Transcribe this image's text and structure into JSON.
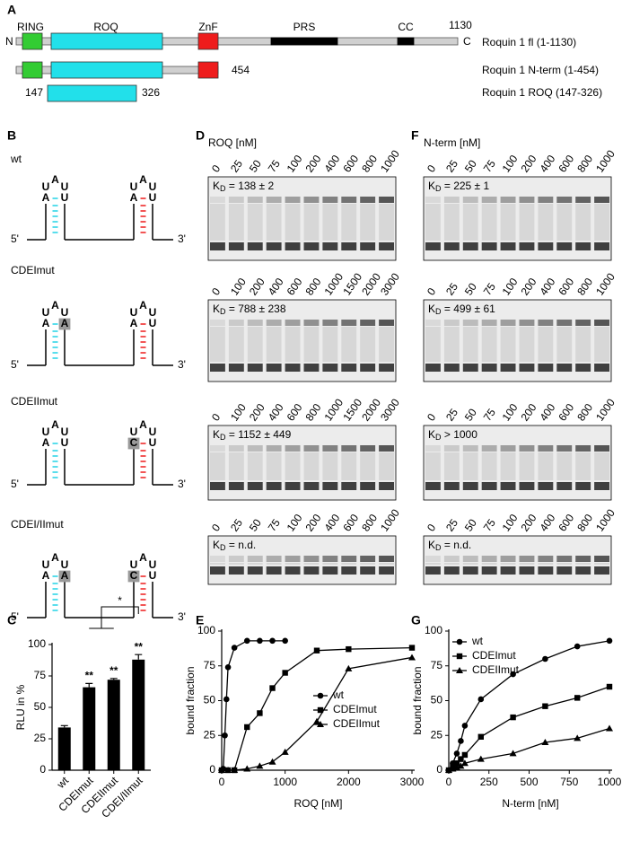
{
  "panel_labels": {
    "a": "A",
    "b": "B",
    "c": "C",
    "d": "D",
    "e": "E",
    "f": "F",
    "g": "G"
  },
  "panel_a": {
    "n_term": "N",
    "c_term": "C",
    "length": "1130",
    "domain_labels": [
      "RING",
      "ROQ",
      "ZnF",
      "PRS",
      "CC"
    ],
    "constructs": [
      "Roquin 1 fl (1-1130)",
      "Roquin 1 N-term (1-454)",
      "Roquin 1 ROQ (147-326)"
    ],
    "nterm_end": "454",
    "roq_start": "147",
    "roq_end": "326"
  },
  "panel_b": {
    "five_prime": "5'",
    "three_prime": "3'",
    "rows": [
      {
        "label": "wt",
        "left": [
          "U",
          "A",
          "U",
          "A",
          "U"
        ],
        "right": [
          "U",
          "A",
          "U",
          "A",
          "U"
        ],
        "left_mutated": false,
        "right_mutated": false
      },
      {
        "label": "CDEImut",
        "left": [
          "U",
          "A",
          "U",
          "A",
          "A"
        ],
        "right": [
          "U",
          "A",
          "U",
          "A",
          "U"
        ],
        "left_mutated": true,
        "right_mutated": false
      },
      {
        "label": "CDEIImut",
        "left": [
          "U",
          "A",
          "U",
          "A",
          "U"
        ],
        "right": [
          "U",
          "A",
          "U",
          "C",
          "U"
        ],
        "left_mutated": false,
        "right_mutated": true
      },
      {
        "label": "CDEI/IImut",
        "left": [
          "U",
          "A",
          "U",
          "A",
          "A"
        ],
        "right": [
          "U",
          "A",
          "U",
          "C",
          "U"
        ],
        "left_mutated": true,
        "right_mutated": true
      }
    ]
  },
  "panel_d": {
    "title": "ROQ [nM]",
    "kd_symbol": "K",
    "kd_subscript": "D",
    "gels": [
      {
        "lanes": [
          "0",
          "25",
          "50",
          "75",
          "100",
          "200",
          "400",
          "600",
          "800",
          "1000"
        ],
        "kd": " = 138 ± 2"
      },
      {
        "lanes": [
          "0",
          "100",
          "200",
          "400",
          "600",
          "800",
          "1000",
          "1500",
          "2000",
          "3000"
        ],
        "kd": " = 788 ± 238"
      },
      {
        "lanes": [
          "0",
          "100",
          "200",
          "400",
          "600",
          "800",
          "1000",
          "1500",
          "2000",
          "3000"
        ],
        "kd": " = 1152 ± 449"
      },
      {
        "lanes": [
          "0",
          "25",
          "50",
          "75",
          "100",
          "200",
          "400",
          "600",
          "800",
          "1000"
        ],
        "kd": " = n.d."
      }
    ]
  },
  "panel_f": {
    "title": "N-term [nM]",
    "kd_symbol": "K",
    "kd_subscript": "D",
    "gels": [
      {
        "lanes": [
          "0",
          "25",
          "50",
          "75",
          "100",
          "200",
          "400",
          "600",
          "800",
          "1000"
        ],
        "kd": " = 225 ± 1"
      },
      {
        "lanes": [
          "0",
          "25",
          "50",
          "75",
          "100",
          "200",
          "400",
          "600",
          "800",
          "1000"
        ],
        "kd": " = 499 ± 61"
      },
      {
        "lanes": [
          "0",
          "25",
          "50",
          "75",
          "100",
          "200",
          "400",
          "600",
          "800",
          "1000"
        ],
        "kd": " > 1000"
      },
      {
        "lanes": [
          "0",
          "25",
          "50",
          "75",
          "100",
          "200",
          "400",
          "600",
          "800",
          "1000"
        ],
        "kd": " = n.d."
      }
    ]
  },
  "chart_data": [
    {
      "type": "bar",
      "categories": [
        "wt",
        "CDEImut",
        "CDEIImut",
        "CDEI/IImut"
      ],
      "values": [
        34,
        66,
        72,
        88
      ],
      "errors": [
        1.5,
        3,
        1,
        4
      ],
      "color": "#000000",
      "ylim": [
        0,
        100
      ],
      "yticks": [
        0,
        25,
        50,
        75,
        100
      ],
      "ylabel": "RLU in %",
      "significance": [
        null,
        "**",
        "**",
        "**"
      ],
      "bracket_label": "*"
    },
    {
      "type": "line",
      "xlabel": "ROQ [nM]",
      "ylabel": "bound fraction",
      "xlim": [
        0,
        3000
      ],
      "xticks": [
        0,
        1000,
        2000,
        3000
      ],
      "ylim": [
        0,
        100
      ],
      "yticks": [
        0,
        25,
        50,
        75,
        100
      ],
      "legend": "lower right",
      "series": [
        {
          "name": "wt",
          "color": "#000000",
          "marker": "circle",
          "x": [
            0,
            25,
            50,
            75,
            100,
            200,
            400,
            600,
            800,
            1000
          ],
          "values": [
            0,
            1,
            25,
            51,
            74,
            88,
            93,
            93,
            93,
            93
          ]
        },
        {
          "name": "CDEImut",
          "color": "#000000",
          "marker": "square",
          "x": [
            0,
            100,
            200,
            400,
            600,
            800,
            1000,
            1500,
            2000,
            3000
          ],
          "values": [
            0,
            0,
            0,
            31,
            41,
            59,
            70,
            86,
            87,
            88
          ]
        },
        {
          "name": "CDEIImut",
          "color": "#000000",
          "marker": "triangle",
          "x": [
            0,
            100,
            200,
            400,
            600,
            800,
            1000,
            1500,
            2000,
            3000
          ],
          "values": [
            0,
            0,
            0,
            1,
            3,
            6,
            13,
            35,
            73,
            81
          ]
        }
      ]
    },
    {
      "type": "line",
      "xlabel": "N-term [nM]",
      "ylabel": "bound fraction",
      "xlim": [
        0,
        1000
      ],
      "xticks": [
        0,
        250,
        500,
        750,
        1000
      ],
      "ylim": [
        0,
        100
      ],
      "yticks": [
        0,
        25,
        50,
        75,
        100
      ],
      "legend": "upper left",
      "series": [
        {
          "name": "wt",
          "color": "#000000",
          "marker": "circle",
          "x": [
            0,
            25,
            50,
            75,
            100,
            200,
            400,
            600,
            800,
            1000
          ],
          "values": [
            0,
            5,
            12,
            21,
            32,
            51,
            69,
            80,
            89,
            93
          ]
        },
        {
          "name": "CDEImut",
          "color": "#000000",
          "marker": "square",
          "x": [
            0,
            25,
            50,
            75,
            100,
            200,
            400,
            600,
            800,
            1000
          ],
          "values": [
            0,
            3,
            5,
            8,
            11,
            24,
            38,
            46,
            52,
            60
          ]
        },
        {
          "name": "CDEIImut",
          "color": "#000000",
          "marker": "triangle",
          "x": [
            0,
            25,
            50,
            75,
            100,
            200,
            400,
            600,
            800,
            1000
          ],
          "values": [
            0,
            1,
            2,
            3,
            5,
            8,
            12,
            20,
            23,
            30
          ]
        }
      ]
    }
  ]
}
